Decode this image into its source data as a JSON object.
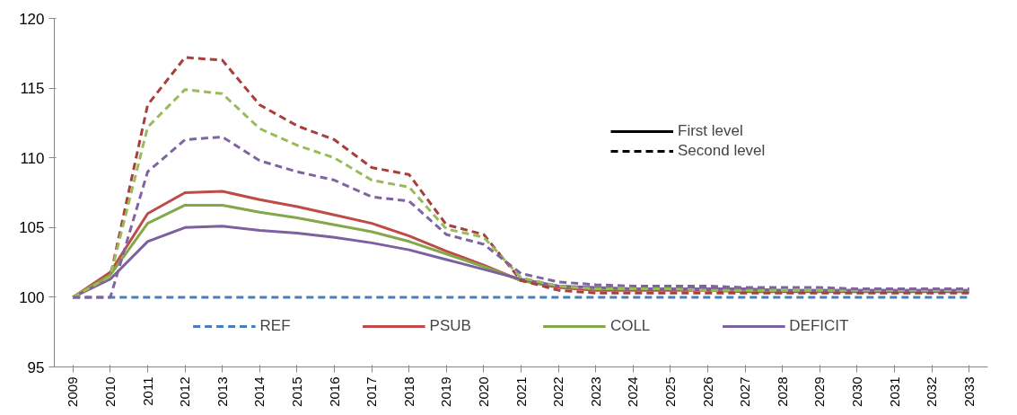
{
  "chart_data": {
    "type": "line",
    "categories": [
      "2009",
      "2010",
      "2011",
      "2012",
      "2013",
      "2014",
      "2015",
      "2016",
      "2017",
      "2018",
      "2019",
      "2020",
      "2021",
      "2022",
      "2023",
      "2024",
      "2025",
      "2026",
      "2027",
      "2028",
      "2029",
      "2030",
      "2031",
      "2032",
      "2033"
    ],
    "ylim": [
      95,
      120
    ],
    "yticks": [
      95,
      100,
      105,
      110,
      115,
      120
    ],
    "grid": false,
    "legend": "bottom",
    "series": [
      {
        "name": "REF",
        "color": "#4a7ebb",
        "line_style": "dashed",
        "values": [
          100,
          100,
          100,
          100,
          100,
          100,
          100,
          100,
          100,
          100,
          100,
          100,
          100,
          100,
          100,
          100,
          100,
          100,
          100,
          100,
          100,
          100,
          100,
          100,
          100
        ]
      },
      {
        "name": "PSUB",
        "color": "#be4b48",
        "line_style": "solid",
        "values": [
          100,
          101.8,
          106.0,
          107.5,
          107.6,
          107.0,
          106.5,
          105.9,
          105.3,
          104.4,
          103.3,
          102.3,
          101.2,
          100.7,
          100.5,
          100.5,
          100.5,
          100.5,
          100.4,
          100.4,
          100.4,
          100.4,
          100.4,
          100.4,
          100.4
        ]
      },
      {
        "name": "COLL",
        "color": "#84a74a",
        "line_style": "solid",
        "values": [
          100,
          101.6,
          105.3,
          106.6,
          106.6,
          106.1,
          105.7,
          105.2,
          104.7,
          104.0,
          103.1,
          102.2,
          101.2,
          100.8,
          100.6,
          100.6,
          100.6,
          100.6,
          100.5,
          100.5,
          100.5,
          100.5,
          100.5,
          100.5,
          100.5
        ]
      },
      {
        "name": "DEFICIT",
        "color": "#7d60a0",
        "line_style": "solid",
        "values": [
          100,
          101.3,
          104.0,
          105.0,
          105.1,
          104.8,
          104.6,
          104.3,
          103.9,
          103.4,
          102.7,
          102.0,
          101.3,
          100.8,
          100.7,
          100.6,
          100.6,
          100.6,
          100.6,
          100.5,
          100.5,
          100.5,
          100.5,
          100.5,
          100.5
        ]
      },
      {
        "color": "#a83f3c",
        "line_style": "dashed",
        "values": [
          100,
          101.5,
          113.8,
          117.2,
          117.0,
          113.8,
          112.3,
          111.3,
          109.3,
          108.8,
          105.2,
          104.5,
          101.2,
          100.5,
          100.3,
          100.3,
          100.3,
          100.3,
          100.3,
          100.3,
          100.3,
          100.3,
          100.3,
          100.3,
          100.3
        ]
      },
      {
        "color": "#9bbb59",
        "line_style": "dashed",
        "values": [
          100,
          101.5,
          112.2,
          114.9,
          114.6,
          112.1,
          110.9,
          110.0,
          108.4,
          107.9,
          104.9,
          104.3,
          101.4,
          100.8,
          100.6,
          100.6,
          100.6,
          100.5,
          100.5,
          100.5,
          100.5,
          100.5,
          100.5,
          100.5,
          100.5
        ]
      },
      {
        "color": "#8064a2",
        "line_style": "dashed",
        "values": [
          100,
          100.0,
          109.0,
          111.3,
          111.5,
          109.8,
          109.0,
          108.4,
          107.2,
          106.9,
          104.5,
          103.8,
          101.7,
          101.1,
          100.9,
          100.8,
          100.8,
          100.8,
          100.7,
          100.7,
          100.7,
          100.6,
          100.6,
          100.6,
          100.6
        ]
      },
      {
        "name": "First level",
        "color": "#000000",
        "line_style": "solid",
        "values": [
          null,
          null,
          null,
          null,
          null,
          null,
          null,
          null,
          null,
          null,
          null,
          null,
          null,
          null,
          null,
          null,
          null,
          null,
          null,
          null,
          null,
          null,
          null,
          null,
          null
        ]
      },
      {
        "name": "Second level",
        "color": "#000000",
        "line_style": "dashed",
        "values": [
          null,
          null,
          null,
          null,
          null,
          null,
          null,
          null,
          null,
          null,
          null,
          null,
          null,
          null,
          null,
          null,
          null,
          null,
          null,
          null,
          null,
          null,
          null,
          null,
          null
        ]
      }
    ]
  }
}
